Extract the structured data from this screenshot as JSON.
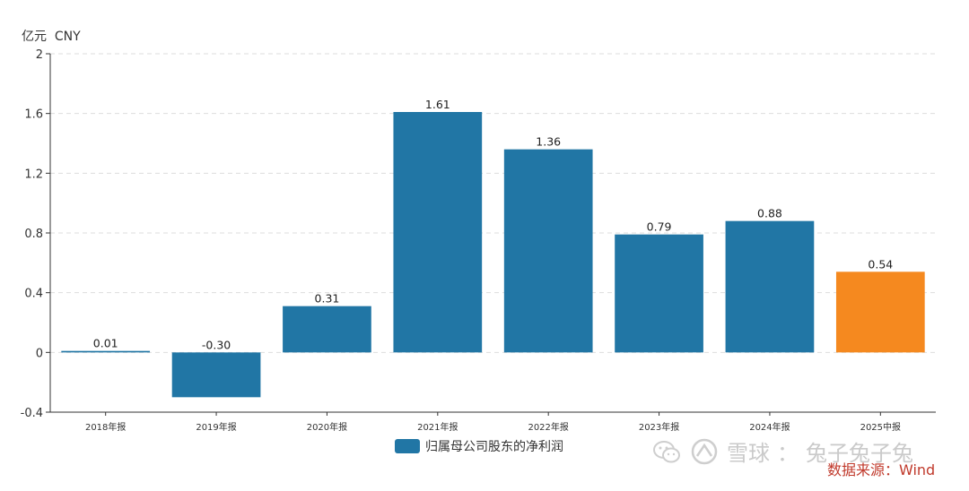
{
  "unit_label": "亿元  CNY",
  "legend": {
    "label": "归属母公司股东的净利润",
    "color": "#2176a5"
  },
  "watermark": {
    "platform": "雪球",
    "separator": "：",
    "author": "兔子兔子兔"
  },
  "source": "数据来源：Wind",
  "colors": {
    "bar_default": "#2176a5",
    "bar_highlight": "#f5891f",
    "axis": "#333333",
    "grid": "#dddddd"
  },
  "chart_data": {
    "type": "bar",
    "title": "",
    "xlabel": "",
    "ylabel": "亿元  CNY",
    "categories": [
      "2018年报",
      "2019年报",
      "2020年报",
      "2021年报",
      "2022年报",
      "2023年报",
      "2024年报",
      "2025中报"
    ],
    "series": [
      {
        "name": "归属母公司股东的净利润",
        "values": [
          0.01,
          -0.3,
          0.31,
          1.61,
          1.36,
          0.79,
          0.88,
          0.54
        ],
        "labels": [
          "0.01",
          "-0.30",
          "0.31",
          "1.61",
          "1.36",
          "0.79",
          "0.88",
          "0.54"
        ],
        "highlight_index": 7
      }
    ],
    "ylim": [
      -0.4,
      2
    ],
    "yticks": [
      -0.4,
      0,
      0.4,
      0.8,
      1.2,
      1.6,
      2
    ],
    "ytick_labels": [
      "-0.4",
      "0",
      "0.4",
      "0.8",
      "1.2",
      "1.6",
      "2"
    ],
    "grid": true,
    "legend_position": "bottom"
  }
}
